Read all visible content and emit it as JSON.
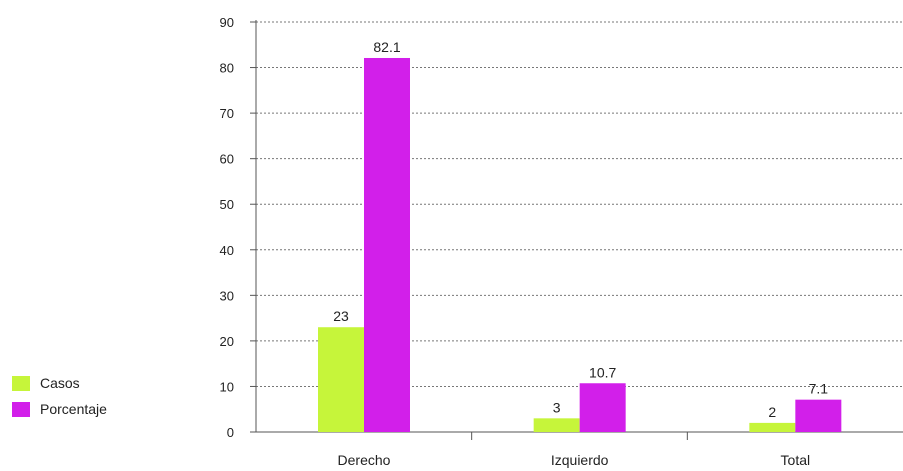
{
  "chart_data": {
    "type": "bar",
    "categories": [
      "Derecho",
      "Izquierdo",
      "Total"
    ],
    "series": [
      {
        "name": "Casos",
        "values": [
          23,
          3,
          2
        ],
        "value_labels": [
          "23",
          "3",
          "2"
        ],
        "color": "#c6f53a"
      },
      {
        "name": "Porcentaje",
        "values": [
          82.1,
          10.7,
          7.1
        ],
        "value_labels": [
          "82.1",
          "10.7",
          "7.1"
        ],
        "color": "#d21fea"
      }
    ],
    "ylim": [
      0,
      90
    ],
    "yticks": [
      0,
      10,
      20,
      30,
      40,
      50,
      60,
      70,
      80,
      90
    ],
    "grid": true,
    "legend_position": "bottom-left"
  }
}
